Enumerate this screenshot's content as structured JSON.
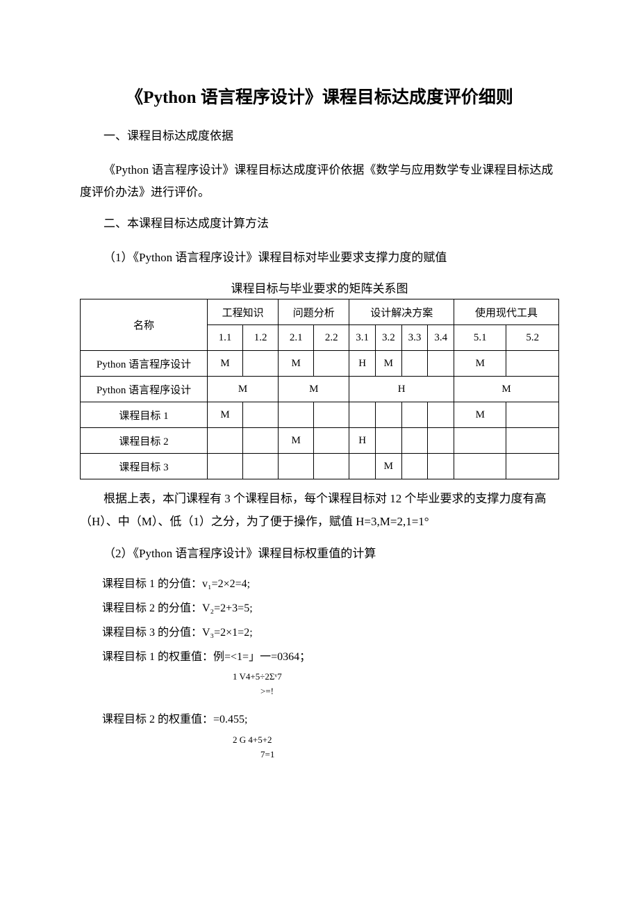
{
  "title": "《Python 语言程序设计》课程目标达成度评价细则",
  "section1_heading": "一、课程目标达成度依据",
  "para1": "《Python 语言程序设计》课程目标达成度评价依据《数学与应用数学专业课程目标达成度评价办法》进行评价。",
  "section2_heading": "二、本课程目标达成度计算方法",
  "para2": "（1）《Python 语言程序设计》课程目标对毕业要求支撑力度的赋值",
  "table": {
    "caption": "课程目标与毕业要求的矩阵关系图",
    "top_headers": {
      "name": "名称",
      "group1": "工程知识",
      "group2": "问题分析",
      "group3": "设计解决方案",
      "group4": "使用现代工具"
    },
    "sub_headers": [
      "1.1",
      "1.2",
      "2.1",
      "2.2",
      "3.1",
      "3.2",
      "3.3",
      "3.4",
      "5.1",
      "5.2"
    ],
    "rows": [
      {
        "label": "Python 语言程序设计",
        "cells": [
          "M",
          "",
          "M",
          "",
          "H",
          "M",
          "",
          "",
          "M",
          ""
        ],
        "span": false
      },
      {
        "label": "Python 语言程序设计",
        "cells": [
          "M",
          "M",
          "H",
          "M"
        ],
        "span": true
      },
      {
        "label": "课程目标 1",
        "cells": [
          "M",
          "",
          "",
          "",
          "",
          "",
          "",
          "",
          "M",
          ""
        ],
        "span": false
      },
      {
        "label": "课程目标 2",
        "cells": [
          "",
          "",
          "M",
          "",
          "H",
          "",
          "",
          "",
          "",
          ""
        ],
        "span": false
      },
      {
        "label": "课程目标 3",
        "cells": [
          "",
          "",
          "",
          "",
          "",
          "M",
          "",
          "",
          "",
          ""
        ],
        "span": false
      }
    ]
  },
  "para3": "根据上表，本门课程有 3 个课程目标，每个课程目标对 12 个毕业要求的支撑力度有高（H）、中（M）、低（1）之分，为了便于操作，赋值 H=3,M=2,1=1°",
  "para4": "（2）《Python 语言程序设计》课程目标权重值的计算",
  "f1": "课程目标 1 的分值：v₁=2×2=4;",
  "f2": "课程目标 2 的分值：V₂=2+3=5;",
  "f3": "课程目标 3 的分值：V₃=2×1=2;",
  "f4_line": "课程目标 1 的权重值：例=<1=」一=0364；",
  "f4_sub1": "1   V4+5÷2Σᵛ7",
  "f4_sub2": ">=!",
  "f5_line": "课程目标 2 的权重值：=0.455;",
  "f5_sub1": "2   G      4+5+2",
  "f5_sub2": "7=1"
}
